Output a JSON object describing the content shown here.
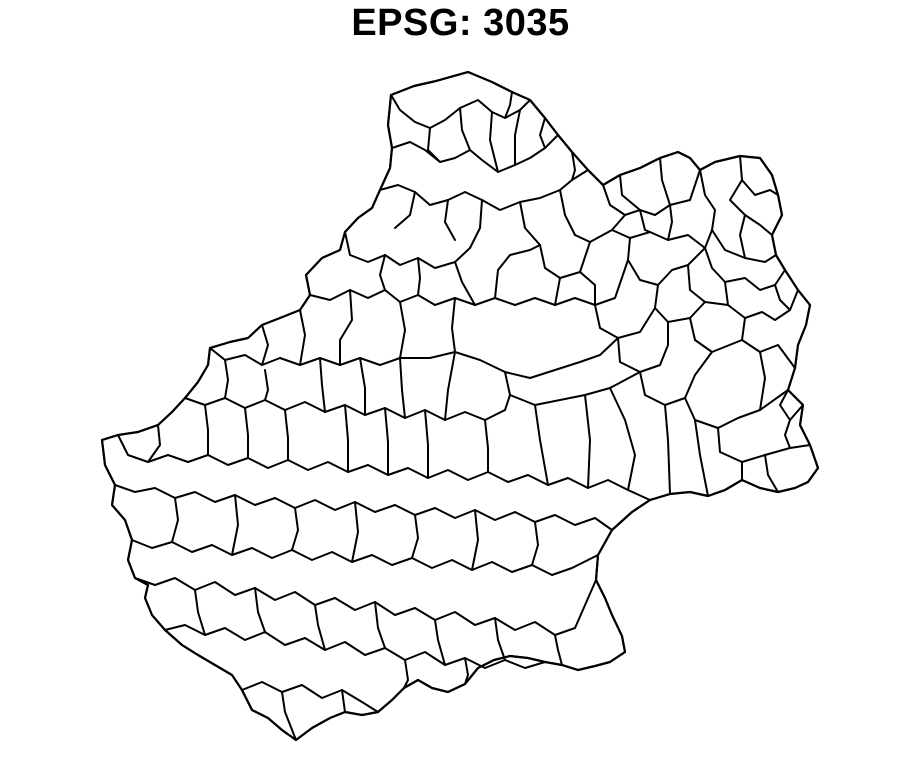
{
  "title": "EPSG: 3035",
  "map": {
    "type": "choropleth-outline",
    "fill_color": "#ffffff",
    "stroke_color": "#000000",
    "background_color": "#ffffff"
  }
}
